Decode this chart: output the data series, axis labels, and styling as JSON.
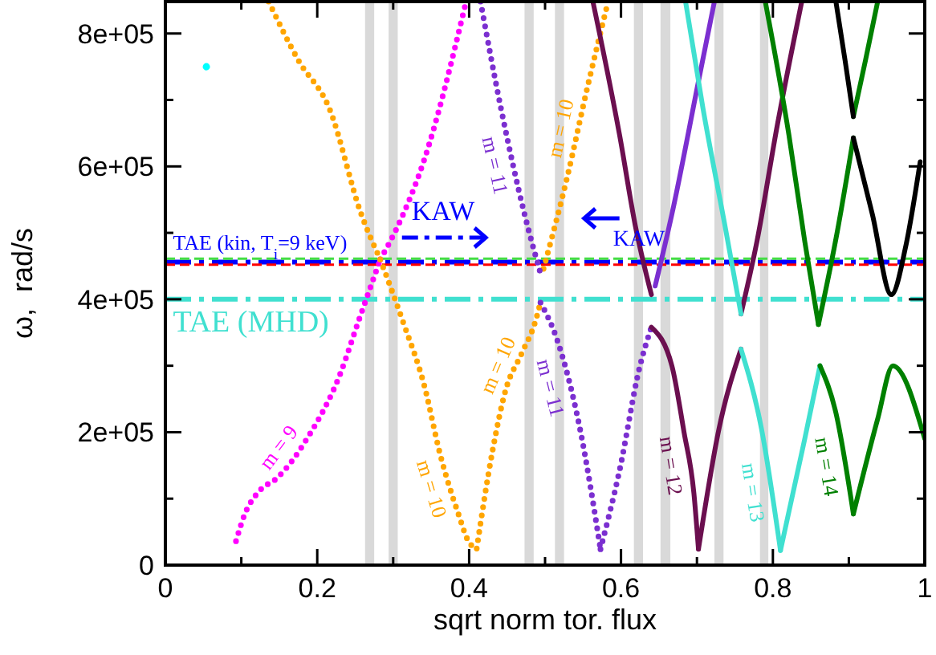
{
  "chart_data": {
    "type": "line",
    "xlabel": "sqrt norm tor. flux",
    "ylabel": "ω,  rad/s",
    "xlim": [
      0,
      1
    ],
    "ylim": [
      0,
      848000
    ],
    "xticks": [
      0,
      {
        "value": 0.1,
        "label": null
      },
      0.2,
      {
        "value": 0.3,
        "label": null
      },
      0.4,
      {
        "value": 0.5,
        "label": null
      },
      0.6,
      {
        "value": 0.7,
        "label": null
      },
      0.8,
      {
        "value": 0.9,
        "label": null
      },
      1
    ],
    "yticks": [
      0,
      {
        "value": 100000,
        "label": null
      },
      {
        "value": 200000,
        "label": "2e+05"
      },
      {
        "value": 300000,
        "label": null
      },
      {
        "value": 400000,
        "label": "4e+05"
      },
      {
        "value": 500000,
        "label": null
      },
      {
        "value": 600000,
        "label": "6e+05"
      },
      {
        "value": 700000,
        "label": null
      },
      {
        "value": 800000,
        "label": "8e+05"
      }
    ],
    "grid": false,
    "bands": [
      {
        "axis": "x",
        "from": 0.263,
        "to": 0.275,
        "color": "#d9d9d9"
      },
      {
        "axis": "x",
        "from": 0.294,
        "to": 0.306,
        "color": "#d9d9d9"
      },
      {
        "axis": "x",
        "from": 0.473,
        "to": 0.485,
        "color": "#d9d9d9"
      },
      {
        "axis": "x",
        "from": 0.513,
        "to": 0.525,
        "color": "#d9d9d9"
      },
      {
        "axis": "x",
        "from": 0.617,
        "to": 0.629,
        "color": "#d9d9d9"
      },
      {
        "axis": "x",
        "from": 0.652,
        "to": 0.665,
        "color": "#d9d9d9"
      },
      {
        "axis": "x",
        "from": 0.723,
        "to": 0.735,
        "color": "#d9d9d9"
      },
      {
        "axis": "x",
        "from": 0.783,
        "to": 0.794,
        "color": "#d9d9d9"
      }
    ],
    "ref_lines": [
      {
        "axis": "y",
        "value": 456000,
        "color": "#0000ff",
        "line_style": "dashed"
      },
      {
        "axis": "y",
        "value": 461000,
        "color": "#44dd44",
        "line_style": "dashed"
      },
      {
        "axis": "y",
        "value": 452000,
        "color": "#ff0000",
        "line_style": "dashed"
      },
      {
        "axis": "y",
        "value": 400000,
        "color": "#40e0d0",
        "line_style": "dashed"
      }
    ],
    "annotations": [
      {
        "text": "TAE (kin, T$_{i}$=9 keV)",
        "x": 0.01,
        "y": 456000
      },
      {
        "text": "TAE (MHD)",
        "x": 0.01,
        "y": 400000
      },
      "KAW",
      "KAW"
    ],
    "series": [
      {
        "name": "m = 9",
        "color": "#ff00ff",
        "line_style": "dotted",
        "x": [
          0.093,
          0.104,
          0.125,
          0.146,
          0.188,
          0.23,
          0.254,
          0.283
        ],
        "values": [
          36000,
          75000,
          113000,
          130000,
          193000,
          287000,
          366000,
          460000
        ]
      },
      {
        "color": "#ff00ff",
        "line_style": "dotted",
        "x": [
          0.283,
          0.306,
          0.34,
          0.396
        ],
        "values": [
          460000,
          510000,
          607000,
          848000
        ]
      },
      {
        "color": "#ffa500",
        "line_style": "dotted",
        "x": [
          0.136,
          0.175,
          0.216,
          0.258,
          0.283
        ],
        "values": [
          848000,
          760000,
          687000,
          528000,
          460000
        ]
      },
      {
        "name": "m = 10",
        "color": "#ffa500",
        "line_style": "dotted",
        "x": [
          0.283,
          0.313,
          0.341,
          0.362,
          0.385,
          0.4,
          0.41
        ],
        "values": [
          460000,
          366000,
          270000,
          166000,
          80000,
          34000,
          25000
        ]
      },
      {
        "name": "m = 10",
        "color": "#ffa500",
        "line_style": "dotted",
        "x": [
          0.41,
          0.431,
          0.448,
          0.469,
          0.487,
          0.494
        ],
        "values": [
          25000,
          173000,
          263000,
          318000,
          366000,
          395000
        ]
      },
      {
        "name": "m = 10",
        "color": "#ffa500",
        "line_style": "dotted",
        "x": [
          0.498,
          0.529,
          0.556,
          0.583
        ],
        "values": [
          446000,
          583000,
          720000,
          848000
        ]
      },
      {
        "name": "m = 11",
        "color": "#7b2fd0",
        "line_style": "dotted",
        "x": [
          0.415,
          0.442,
          0.473,
          0.494
        ],
        "values": [
          848000,
          687000,
          528000,
          439000
        ]
      },
      {
        "name": "m = 11",
        "color": "#7b2fd0",
        "line_style": "dotted",
        "x": [
          0.494,
          0.515,
          0.546,
          0.573
        ],
        "values": [
          395000,
          342000,
          205000,
          24000
        ]
      },
      {
        "color": "#7b2fd0",
        "line_style": "dotted",
        "x": [
          0.573,
          0.598,
          0.625,
          0.64
        ],
        "values": [
          24000,
          142000,
          300000,
          358000
        ]
      },
      {
        "color": "#7b2fd0",
        "line_style": "solid",
        "x": [
          0.645,
          0.667,
          0.702,
          0.723
        ],
        "values": [
          420000,
          528000,
          728000,
          848000
        ]
      },
      {
        "name": "m = 12",
        "color": "#6b0f4f",
        "line_style": "solid",
        "x": [
          0.64,
          0.667,
          0.683,
          0.696,
          0.702
        ],
        "values": [
          358000,
          300000,
          200000,
          108000,
          24000
        ]
      },
      {
        "color": "#6b0f4f",
        "line_style": "solid",
        "x": [
          0.702,
          0.729,
          0.758
        ],
        "values": [
          24000,
          205000,
          325000
        ]
      },
      {
        "color": "#6b0f4f",
        "line_style": "solid",
        "x": [
          0.563,
          0.598,
          0.619,
          0.64
        ],
        "values": [
          848000,
          648000,
          510000,
          407000
        ]
      },
      {
        "color": "#6b0f4f",
        "line_style": "solid",
        "x": [
          0.758,
          0.779,
          0.806,
          0.838
        ],
        "values": [
          378000,
          487000,
          663000,
          848000
        ]
      },
      {
        "color": "#40e0d0",
        "line_style": "solid",
        "x": [
          0.685,
          0.708,
          0.737,
          0.758
        ],
        "values": [
          848000,
          687000,
          510000,
          378000
        ]
      },
      {
        "name": "m = 13",
        "color": "#40e0d0",
        "line_style": "solid",
        "x": [
          0.758,
          0.785,
          0.81
        ],
        "values": [
          325000,
          205000,
          22000
        ]
      },
      {
        "color": "#40e0d0",
        "line_style": "solid",
        "x": [
          0.81,
          0.842,
          0.862
        ],
        "values": [
          22000,
          190000,
          300000
        ]
      },
      {
        "name": "m = 14",
        "color": "#008000",
        "line_style": "solid",
        "x": [
          0.862,
          0.883,
          0.906
        ],
        "values": [
          300000,
          229000,
          77000
        ]
      },
      {
        "color": "#008000",
        "line_style": "solid",
        "x": [
          0.906,
          0.938,
          0.958,
          1.0
        ],
        "values": [
          77000,
          220000,
          300000,
          190000
        ]
      },
      {
        "color": "#008000",
        "line_style": "solid",
        "x": [
          0.79,
          0.821,
          0.842,
          0.86
        ],
        "values": [
          848000,
          648000,
          487000,
          362000
        ]
      },
      {
        "color": "#008000",
        "line_style": "solid",
        "x": [
          0.86,
          0.885,
          0.906
        ],
        "values": [
          362000,
          503000,
          643000
        ]
      },
      {
        "color": "#008000",
        "line_style": "solid",
        "x": [
          0.906,
          0.922,
          0.938
        ],
        "values": [
          675000,
          760000,
          848000
        ]
      },
      {
        "color": "#000000",
        "line_style": "solid",
        "x": [
          0.883,
          0.895,
          0.906
        ],
        "values": [
          848000,
          760000,
          675000
        ]
      },
      {
        "color": "#000000",
        "line_style": "solid",
        "x": [
          0.906,
          0.931,
          0.956,
          0.975,
          0.994
        ],
        "values": [
          643000,
          528000,
          407000,
          480000,
          607000
        ]
      },
      {
        "type": "scatter",
        "marker": "circle",
        "color": "#00ffff",
        "x": [
          0.054
        ],
        "values": [
          750000
        ]
      }
    ]
  }
}
